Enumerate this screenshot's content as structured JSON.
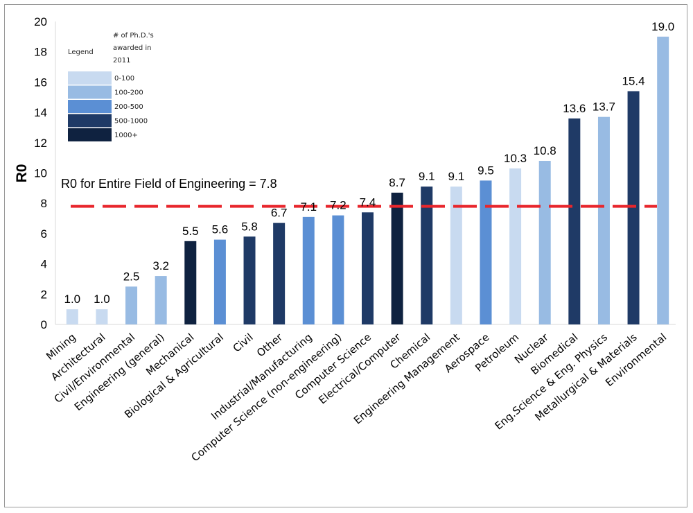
{
  "chart_data": {
    "type": "bar",
    "ylabel": "R0",
    "ylim": [
      0,
      20
    ],
    "yticks": [
      0,
      2,
      4,
      6,
      8,
      10,
      12,
      14,
      16,
      18,
      20
    ],
    "grid": false,
    "categories": [
      "Mining",
      "Architectural",
      "Civil/Environmental",
      "Engineering (general)",
      "Mechanical",
      "Biological & Agricultural",
      "Civil",
      "Other",
      "Industrial/Manufacturing",
      "Computer Science (non-engineering)",
      "Computer Science",
      "Electrical/Computer",
      "Chemical",
      "Engineering Management",
      "Aerospace",
      "Petroleum",
      "Nuclear",
      "Biomedical",
      "Eng.Science & Eng. Physics",
      "Metallurgical & Materials",
      "Environmental"
    ],
    "values": [
      1.0,
      1.0,
      2.5,
      3.2,
      5.5,
      5.6,
      5.8,
      6.7,
      7.1,
      7.2,
      7.4,
      8.7,
      9.1,
      9.1,
      9.5,
      10.3,
      10.8,
      13.6,
      13.7,
      15.4,
      19.0
    ],
    "value_labels": [
      "1.0",
      "1.0",
      "2.5",
      "3.2",
      "5.5",
      "5.6",
      "5.8",
      "6.7",
      "7.1",
      "7.2",
      "7.4",
      "8.7",
      "9.1",
      "9.1",
      "9.5",
      "10.3",
      "10.8",
      "13.6",
      "13.7",
      "15.4",
      "19.0"
    ],
    "phd_bin": [
      "0-100",
      "0-100",
      "100-200",
      "100-200",
      "1000+",
      "200-500",
      "500-1000",
      "500-1000",
      "200-500",
      "200-500",
      "500-1000",
      "1000+",
      "500-1000",
      "0-100",
      "200-500",
      "0-100",
      "100-200",
      "500-1000",
      "100-200",
      "500-1000",
      "100-200"
    ],
    "reference_line": {
      "value": 7.8,
      "label": "R0 for  Entire Field of Engineering = 7.8",
      "color": "#e8262c"
    },
    "legend": {
      "placement": "top-left",
      "title": "Legend",
      "heading": [
        "# of Ph.D.'s",
        "awarded in",
        "2011"
      ],
      "entries": [
        {
          "label": "0-100",
          "color": "#c8daf0"
        },
        {
          "label": "100-200",
          "color": "#98bbe3"
        },
        {
          "label": "200-500",
          "color": "#5b8fd4"
        },
        {
          "label": "500-1000",
          "color": "#1f3a66"
        },
        {
          "label": "1000+",
          "color": "#0f2240"
        }
      ]
    }
  }
}
